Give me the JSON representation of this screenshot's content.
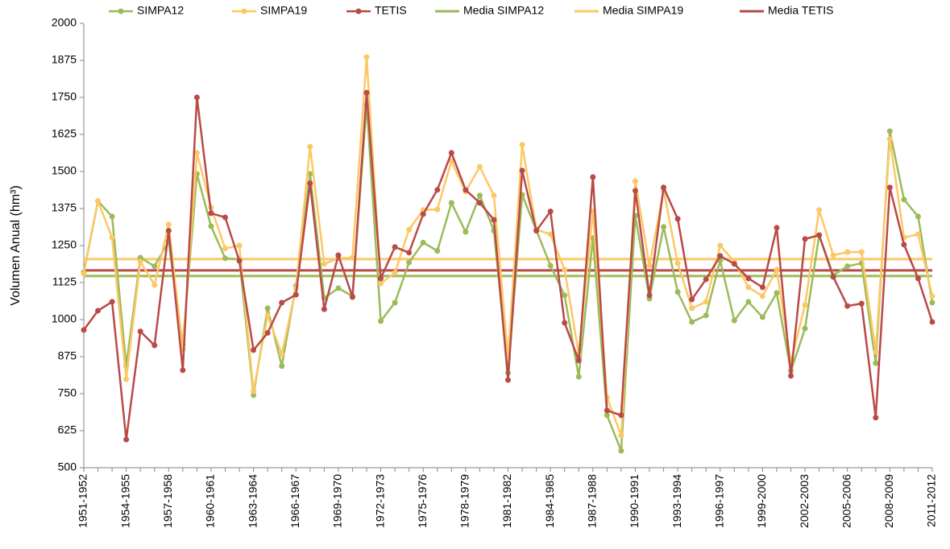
{
  "chart_data": {
    "type": "line",
    "y_label": "Volumen Anual (hm³)",
    "categories": [
      "1951-1952",
      null,
      null,
      "1954-1955",
      null,
      null,
      "1957-1958",
      null,
      null,
      "1960-1961",
      null,
      null,
      "1963-1964",
      null,
      null,
      "1966-1967",
      null,
      null,
      "1969-1970",
      null,
      null,
      "1972-1973",
      null,
      null,
      "1975-1976",
      null,
      null,
      "1978-1979",
      null,
      null,
      "1981-1982",
      null,
      null,
      "1984-1985",
      null,
      null,
      "1987-1988",
      null,
      null,
      "1990-1991",
      null,
      null,
      "1993-1994",
      null,
      null,
      "1996-1997",
      null,
      null,
      "1999-2000",
      null,
      null,
      "2002-2003",
      null,
      null,
      "2005-2006",
      null,
      null,
      "2008-2009",
      null,
      null,
      "2011-2012"
    ],
    "series": [
      {
        "name": "SIMPA12",
        "color": "#9bbb59",
        "values": [
          1160,
          1400,
          1348,
          843,
          1209,
          1180,
          1264,
          915,
          1492,
          1315,
          1207,
          1204,
          745,
          1038,
          843,
          1114,
          1492,
          1073,
          1106,
          1079,
          1726,
          995,
          1057,
          1193,
          1260,
          1232,
          1394,
          1296,
          1419,
          1300,
          820,
          1421,
          1302,
          1182,
          1082,
          807,
          1275,
          677,
          557,
          1351,
          1071,
          1313,
          1093,
          992,
          1014,
          1200,
          997,
          1060,
          1008,
          1090,
          826,
          970,
          1285,
          1150,
          1180,
          1190,
          853,
          1636,
          1405,
          1348,
          1057
        ]
      },
      {
        "name": "SIMPA19",
        "color": "#fcc865",
        "values": [
          1155,
          1400,
          1277,
          799,
          1196,
          1117,
          1321,
          900,
          1563,
          1378,
          1240,
          1250,
          758,
          1014,
          883,
          1106,
          1584,
          1188,
          1207,
          1209,
          1886,
          1122,
          1158,
          1304,
          1370,
          1372,
          1535,
          1432,
          1516,
          1419,
          870,
          1590,
          1304,
          1288,
          1169,
          883,
          1365,
          737,
          609,
          1467,
          1182,
          1438,
          1190,
          1038,
          1060,
          1250,
          1196,
          1109,
          1079,
          1169,
          856,
          1049,
          1370,
          1217,
          1228,
          1228,
          891,
          1609,
          1277,
          1288,
          1079
        ]
      },
      {
        "name": "TETIS",
        "color": "#b94a48",
        "values": [
          965,
          1030,
          1060,
          595,
          960,
          913,
          1300,
          829,
          1750,
          1359,
          1345,
          1198,
          897,
          955,
          1057,
          1084,
          1460,
          1035,
          1217,
          1076,
          1766,
          1139,
          1245,
          1226,
          1356,
          1438,
          1563,
          1438,
          1394,
          1337,
          796,
          1503,
          1300,
          1365,
          989,
          862,
          1481,
          693,
          677,
          1435,
          1082,
          1446,
          1340,
          1068,
          1136,
          1215,
          1188,
          1139,
          1109,
          1310,
          810,
          1272,
          1285,
          1144,
          1046,
          1054,
          669,
          1446,
          1253,
          1139,
          992
        ]
      }
    ],
    "reference_lines": [
      {
        "name": "Media SIMPA12",
        "color": "#9bbb59",
        "value": 1147
      },
      {
        "name": "Media SIMPA19",
        "color": "#fcc865",
        "value": 1204
      },
      {
        "name": "Media TETIS",
        "color": "#b94a48",
        "value": 1166
      }
    ],
    "ylim": [
      500,
      2000
    ],
    "yticks": [
      500,
      625,
      750,
      875,
      1000,
      1125,
      1250,
      1375,
      1500,
      1625,
      1750,
      1875,
      2000
    ],
    "grid": false
  }
}
